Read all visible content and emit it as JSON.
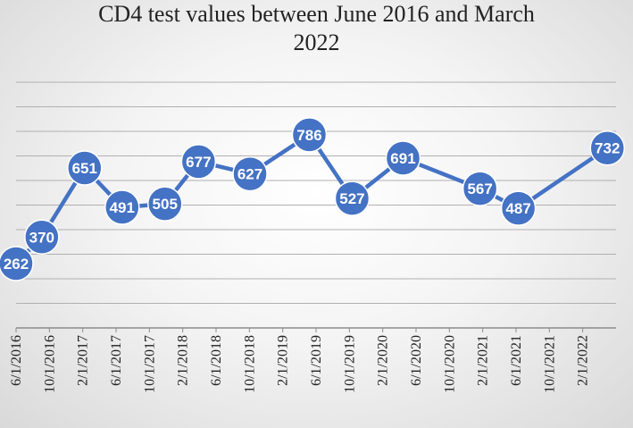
{
  "chart_data": {
    "type": "line",
    "title_line_1": "CD4 test values between June 2016 and March",
    "title_line_2": "2022",
    "x_tick_labels": [
      "6/1/2016",
      "10/1/2016",
      "2/1/2017",
      "6/1/2017",
      "10/1/2017",
      "2/1/2018",
      "6/1/2018",
      "10/1/2018",
      "2/1/2019",
      "6/1/2019",
      "10/1/2019",
      "2/1/2020",
      "6/1/2020",
      "10/1/2020",
      "2/1/2021",
      "6/1/2021",
      "10/1/2021",
      "2/1/2022"
    ],
    "x_range": [
      "2016-06-01",
      "2022-04-15"
    ],
    "y_range": [
      0,
      1000
    ],
    "grid": true,
    "y_axis_labels_shown": false,
    "legend": "none",
    "line_color": "#4472C4",
    "series": [
      {
        "points": [
          {
            "x": "2016-06-01",
            "y": 262
          },
          {
            "x": "2016-09-01",
            "y": 370
          },
          {
            "x": "2017-02-01",
            "y": 651
          },
          {
            "x": "2017-06-15",
            "y": 491
          },
          {
            "x": "2017-11-15",
            "y": 505
          },
          {
            "x": "2018-03-15",
            "y": 677
          },
          {
            "x": "2018-09-15",
            "y": 627
          },
          {
            "x": "2019-04-15",
            "y": 786
          },
          {
            "x": "2019-09-15",
            "y": 527
          },
          {
            "x": "2020-03-15",
            "y": 691
          },
          {
            "x": "2020-12-15",
            "y": 567
          },
          {
            "x": "2021-05-01",
            "y": 487
          },
          {
            "x": "2022-03-15",
            "y": 732
          }
        ]
      }
    ]
  }
}
